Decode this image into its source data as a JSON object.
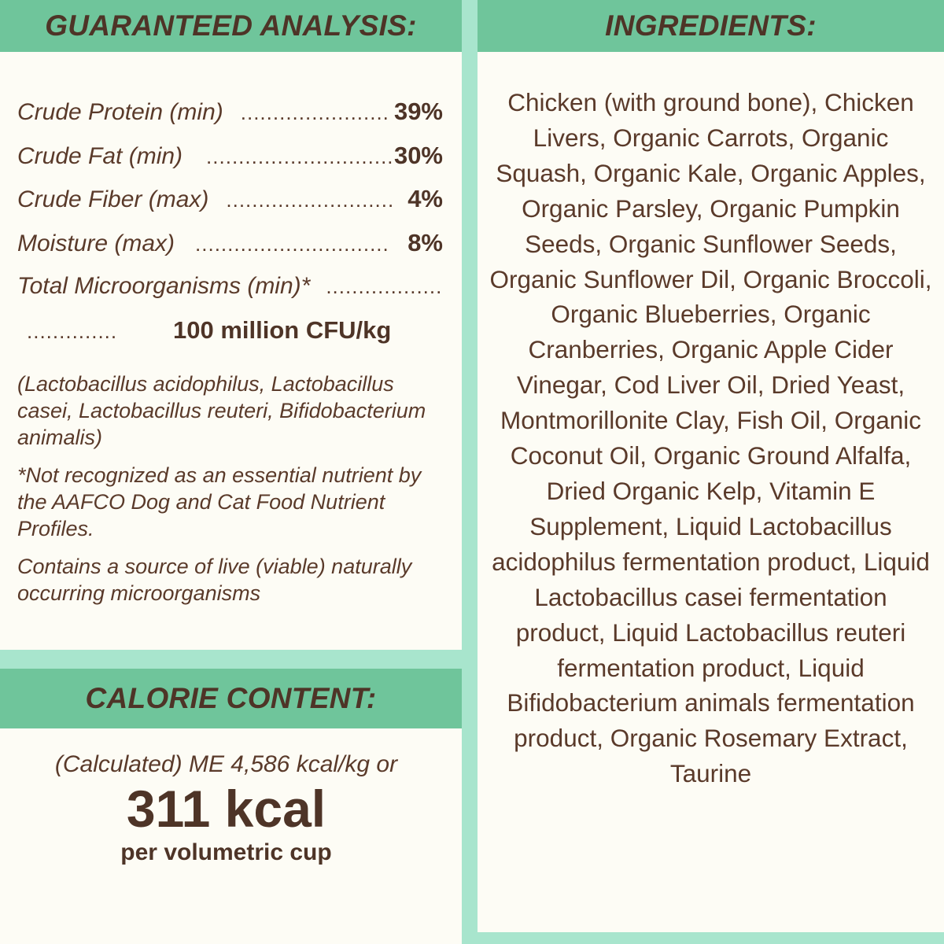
{
  "analysis": {
    "header": "GUARANTEED ANALYSIS:",
    "rows": [
      {
        "label": "Crude Protein (min)",
        "dots": "..............................",
        "value": "39%"
      },
      {
        "label": "Crude Fat (min)",
        "dots": "..............................",
        "value": "30%"
      },
      {
        "label": "Crude Fiber (max)",
        "dots": "..............................",
        "value": "4%"
      },
      {
        "label": "Moisture (max)",
        "dots": "..............................",
        "value": "8%"
      },
      {
        "label": "Total Microorganisms (min)*",
        "dots": "..............................",
        "value": ""
      }
    ],
    "cont_row": {
      "dots": "..............",
      "value": "100 million CFU/kg"
    },
    "strains": "(Lactobacillus acidophilus, Lactobacillus casei, Lactobacillus reuteri, Bifidobacterium animalis)",
    "footnote": "*Not recognized as an essential nutrient by the AAFCO Dog and Cat Food Nutrient Profiles.",
    "live_note": "Contains a source of live (viable) naturally occurring microorganisms"
  },
  "calorie": {
    "header": "CALORIE CONTENT:",
    "line1": "(Calculated) ME 4,586 kcal/kg or",
    "big": "311 kcal",
    "sub": "per volumetric cup"
  },
  "ingredients": {
    "header": "INGREDIENTS:",
    "text": "Chicken (with ground bone), Chicken Livers, Organic Carrots, Organic Squash, Organic Kale, Organic Apples, Organic Parsley, Organic Pumpkin Seeds, Organic Sunflower Seeds, Organic Sunflower Dil, Organic Broccoli, Organic Blueberries, Organic Cranberries, Organic Apple Cider Vinegar, Cod Liver Oil, Dried Yeast, Montmorillonite Clay, Fish Oil, Organic Coconut Oil, Organic Ground Alfalfa, Dried Organic Kelp, Vitamin E Supplement, Liquid Lactobacillus acidophilus fermentation product, Liquid Lactobacillus casei fermentation product, Liquid Lactobacillus reuteri fermentation product, Liquid Bifidobacterium animals fermentation product, Organic Rosemary Extract, Taurine"
  },
  "colors": {
    "background": "#a8e5cd",
    "header": "#6fc59b",
    "panel": "#fdfcf5",
    "text": "#5a3a2a"
  }
}
